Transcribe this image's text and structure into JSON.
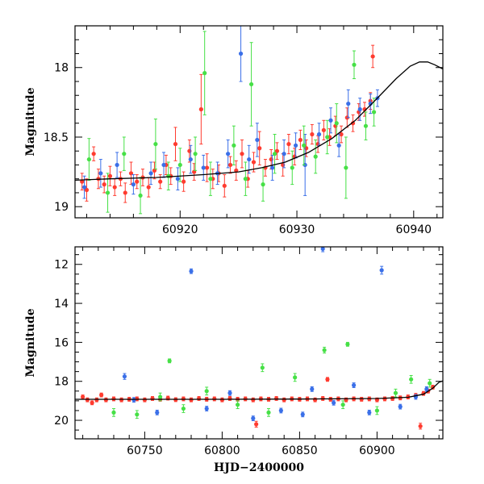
{
  "chart_data": [
    {
      "type": "scatter",
      "title": "",
      "xlabel": "",
      "ylabel": "Magnitude",
      "xlim": [
        60911,
        60942.5
      ],
      "ylim": [
        19.08,
        17.7
      ],
      "y_inverted": true,
      "grid": false,
      "xticks": [
        60920,
        60930,
        60940
      ],
      "yticks": [
        18,
        18.5,
        19
      ],
      "series": [
        {
          "color": "#ff3b2f",
          "points": [
            [
              60911.6,
              18.82,
              0.06
            ],
            [
              60912.0,
              18.88,
              0.08
            ],
            [
              60912.6,
              18.62,
              0.05
            ],
            [
              60913.0,
              18.8,
              0.07
            ],
            [
              60913.5,
              18.84,
              0.06
            ],
            [
              60914.0,
              18.78,
              0.07
            ],
            [
              60914.4,
              18.86,
              0.06
            ],
            [
              60914.9,
              18.8,
              0.05
            ],
            [
              60915.3,
              18.9,
              0.07
            ],
            [
              60915.8,
              18.76,
              0.08
            ],
            [
              60916.3,
              18.82,
              0.05
            ],
            [
              60916.8,
              18.79,
              0.06
            ],
            [
              60917.3,
              18.86,
              0.07
            ],
            [
              60917.8,
              18.74,
              0.06
            ],
            [
              60918.3,
              18.82,
              0.05
            ],
            [
              60918.8,
              18.7,
              0.07
            ],
            [
              60919.2,
              18.78,
              0.06
            ],
            [
              60919.6,
              18.55,
              0.12
            ],
            [
              60920.3,
              18.82,
              0.07
            ],
            [
              60920.8,
              18.6,
              0.08
            ],
            [
              60921.2,
              18.75,
              0.06
            ],
            [
              60921.8,
              18.3,
              0.25
            ],
            [
              60922.3,
              18.72,
              0.1
            ],
            [
              60922.8,
              18.8,
              0.07
            ],
            [
              60923.3,
              18.76,
              0.06
            ],
            [
              60923.8,
              18.85,
              0.08
            ],
            [
              60924.3,
              18.7,
              0.06
            ],
            [
              60924.8,
              18.74,
              0.07
            ],
            [
              60925.3,
              18.62,
              0.1
            ],
            [
              60925.8,
              18.8,
              0.06
            ],
            [
              60926.3,
              18.68,
              0.07
            ],
            [
              60926.8,
              18.58,
              0.12
            ],
            [
              60927.3,
              18.72,
              0.06
            ],
            [
              60927.8,
              18.66,
              0.07
            ],
            [
              60928.3,
              18.6,
              0.06
            ],
            [
              60928.8,
              18.7,
              0.08
            ],
            [
              60929.3,
              18.55,
              0.07
            ],
            [
              60929.8,
              18.64,
              0.06
            ],
            [
              60930.3,
              18.52,
              0.07
            ],
            [
              60930.8,
              18.58,
              0.06
            ],
            [
              60931.3,
              18.48,
              0.07
            ],
            [
              60931.8,
              18.55,
              0.06
            ],
            [
              60932.3,
              18.45,
              0.07
            ],
            [
              60932.8,
              18.5,
              0.06
            ],
            [
              60933.3,
              18.42,
              0.07
            ],
            [
              60933.8,
              18.48,
              0.06
            ],
            [
              60934.3,
              18.36,
              0.07
            ],
            [
              60934.8,
              18.4,
              0.06
            ],
            [
              60935.3,
              18.32,
              0.06
            ],
            [
              60935.8,
              18.3,
              0.05
            ],
            [
              60936.3,
              18.24,
              0.06
            ],
            [
              60936.5,
              17.92,
              0.08
            ]
          ]
        },
        {
          "color": "#3a6fe8",
          "points": [
            [
              60911.8,
              18.86,
              0.08
            ],
            [
              60913.2,
              18.76,
              0.1
            ],
            [
              60914.6,
              18.7,
              0.09
            ],
            [
              60916.0,
              18.84,
              0.07
            ],
            [
              60917.5,
              18.76,
              0.08
            ],
            [
              60918.6,
              18.7,
              0.09
            ],
            [
              60919.8,
              18.8,
              0.08
            ],
            [
              60920.9,
              18.66,
              0.1
            ],
            [
              60922.0,
              18.72,
              0.09
            ],
            [
              60923.2,
              18.76,
              0.08
            ],
            [
              60924.1,
              18.62,
              0.1
            ],
            [
              60925.2,
              17.9,
              0.2
            ],
            [
              60925.9,
              18.66,
              0.1
            ],
            [
              60926.6,
              18.52,
              0.12
            ],
            [
              60927.9,
              18.72,
              0.09
            ],
            [
              60928.9,
              18.62,
              0.1
            ],
            [
              60929.9,
              18.56,
              0.09
            ],
            [
              60930.7,
              18.7,
              0.22
            ],
            [
              60931.9,
              18.48,
              0.08
            ],
            [
              60932.9,
              18.38,
              0.09
            ],
            [
              60933.6,
              18.56,
              0.08
            ],
            [
              60934.4,
              18.26,
              0.1
            ],
            [
              60935.4,
              18.3,
              0.08
            ],
            [
              60936.3,
              18.26,
              0.07
            ],
            [
              60936.9,
              18.22,
              0.06
            ]
          ]
        },
        {
          "color": "#46e046",
          "points": [
            [
              60912.2,
              18.66,
              0.15
            ],
            [
              60913.8,
              18.9,
              0.14
            ],
            [
              60915.2,
              18.62,
              0.12
            ],
            [
              60916.6,
              18.92,
              0.13
            ],
            [
              60917.9,
              18.55,
              0.18
            ],
            [
              60919.0,
              18.78,
              0.1
            ],
            [
              60920.0,
              18.7,
              0.12
            ],
            [
              60921.3,
              18.62,
              0.12
            ],
            [
              60922.1,
              18.04,
              0.3
            ],
            [
              60922.6,
              18.8,
              0.12
            ],
            [
              60924.6,
              18.56,
              0.14
            ],
            [
              60925.6,
              18.8,
              0.12
            ],
            [
              60926.1,
              18.12,
              0.3
            ],
            [
              60927.1,
              18.84,
              0.12
            ],
            [
              60928.1,
              18.62,
              0.14
            ],
            [
              60929.6,
              18.72,
              0.12
            ],
            [
              60930.6,
              18.56,
              0.14
            ],
            [
              60931.6,
              18.64,
              0.12
            ],
            [
              60932.6,
              18.5,
              0.12
            ],
            [
              60933.4,
              18.4,
              0.14
            ],
            [
              60934.2,
              18.72,
              0.22
            ],
            [
              60934.9,
              17.98,
              0.1
            ],
            [
              60935.9,
              18.42,
              0.1
            ],
            [
              60936.6,
              18.32,
              0.1
            ]
          ]
        }
      ],
      "model_curve": [
        [
          60911,
          18.81
        ],
        [
          60914,
          18.8
        ],
        [
          60918,
          18.79
        ],
        [
          60922,
          18.77
        ],
        [
          60925,
          18.75
        ],
        [
          60927,
          18.72
        ],
        [
          60929,
          18.68
        ],
        [
          60931,
          18.61
        ],
        [
          60933,
          18.51
        ],
        [
          60935,
          18.38
        ],
        [
          60937,
          18.21
        ],
        [
          60938.5,
          18.08
        ],
        [
          60939.7,
          17.99
        ],
        [
          60940.5,
          17.96
        ],
        [
          60941.2,
          17.96
        ],
        [
          60941.8,
          17.98
        ],
        [
          60942.5,
          18.01
        ]
      ]
    },
    {
      "type": "scatter",
      "title": "",
      "xlabel": "HJD−2400000",
      "ylabel": "Magnitude",
      "xlim": [
        60705,
        60942.5
      ],
      "ylim": [
        20.95,
        11.1
      ],
      "y_inverted": true,
      "grid": false,
      "xticks": [
        60750,
        60800,
        60850,
        60900
      ],
      "yticks": [
        12,
        14,
        16,
        18,
        20
      ],
      "series": [
        {
          "color": "#ff3b2f",
          "points": [
            [
              60710,
              18.8,
              0.1
            ],
            [
              60713,
              18.95,
              0.1
            ],
            [
              60716,
              19.1,
              0.1
            ],
            [
              60719,
              18.95,
              0.1
            ],
            [
              60722,
              18.7,
              0.1
            ],
            [
              60725,
              18.95,
              0.1
            ],
            [
              60730,
              18.9,
              0.1
            ],
            [
              60735,
              18.95,
              0.1
            ],
            [
              60740,
              18.92,
              0.1
            ],
            [
              60745,
              18.9,
              0.1
            ],
            [
              60750,
              18.95,
              0.1
            ],
            [
              60755,
              18.88,
              0.1
            ],
            [
              60760,
              18.92,
              0.1
            ],
            [
              60765,
              18.86,
              0.1
            ],
            [
              60770,
              18.94,
              0.1
            ],
            [
              60775,
              18.9,
              0.1
            ],
            [
              60780,
              18.95,
              0.1
            ],
            [
              60785,
              18.88,
              0.1
            ],
            [
              60790,
              18.92,
              0.1
            ],
            [
              60795,
              18.9,
              0.1
            ],
            [
              60800,
              18.95,
              0.1
            ],
            [
              60805,
              18.88,
              0.1
            ],
            [
              60810,
              18.92,
              0.1
            ],
            [
              60815,
              18.9,
              0.1
            ],
            [
              60820,
              18.95,
              0.1
            ],
            [
              60822,
              20.2,
              0.15
            ],
            [
              60825,
              18.9,
              0.1
            ],
            [
              60830,
              18.92,
              0.1
            ],
            [
              60835,
              18.88,
              0.1
            ],
            [
              60840,
              18.95,
              0.1
            ],
            [
              60845,
              18.9,
              0.1
            ],
            [
              60850,
              18.92,
              0.1
            ],
            [
              60855,
              18.9,
              0.1
            ],
            [
              60860,
              18.95,
              0.1
            ],
            [
              60865,
              18.88,
              0.1
            ],
            [
              60868,
              17.9,
              0.1
            ],
            [
              60870,
              18.92,
              0.1
            ],
            [
              60875,
              18.9,
              0.1
            ],
            [
              60880,
              18.95,
              0.1
            ],
            [
              60885,
              18.9,
              0.1
            ],
            [
              60890,
              18.92,
              0.1
            ],
            [
              60895,
              18.9,
              0.1
            ],
            [
              60900,
              18.95,
              0.1
            ],
            [
              60905,
              18.9,
              0.1
            ],
            [
              60910,
              18.88,
              0.1
            ],
            [
              60915,
              18.85,
              0.1
            ],
            [
              60920,
              18.8,
              0.1
            ],
            [
              60925,
              18.72,
              0.1
            ],
            [
              60928,
              20.3,
              0.15
            ],
            [
              60930,
              18.62,
              0.1
            ],
            [
              60933,
              18.5,
              0.1
            ],
            [
              60936,
              18.3,
              0.1
            ]
          ]
        },
        {
          "color": "#3a6fe8",
          "points": [
            [
              60737,
              17.75,
              0.15
            ],
            [
              60743,
              18.95,
              0.12
            ],
            [
              60758,
              19.6,
              0.12
            ],
            [
              60780,
              12.35,
              0.12
            ],
            [
              60790,
              19.4,
              0.12
            ],
            [
              60805,
              18.6,
              0.12
            ],
            [
              60820,
              19.9,
              0.12
            ],
            [
              60838,
              19.5,
              0.12
            ],
            [
              60852,
              19.7,
              0.12
            ],
            [
              60858,
              18.4,
              0.12
            ],
            [
              60865,
              11.2,
              0.15
            ],
            [
              60872,
              19.1,
              0.12
            ],
            [
              60885,
              18.2,
              0.12
            ],
            [
              60895,
              19.6,
              0.12
            ],
            [
              60903,
              12.3,
              0.2
            ],
            [
              60915,
              19.3,
              0.12
            ],
            [
              60925,
              18.8,
              0.12
            ],
            [
              60932,
              18.4,
              0.12
            ]
          ]
        },
        {
          "color": "#46e046",
          "points": [
            [
              60730,
              19.6,
              0.2
            ],
            [
              60745,
              19.7,
              0.2
            ],
            [
              60760,
              18.8,
              0.2
            ],
            [
              60766,
              16.95,
              0.1
            ],
            [
              60775,
              19.4,
              0.2
            ],
            [
              60790,
              18.5,
              0.2
            ],
            [
              60810,
              19.2,
              0.2
            ],
            [
              60826,
              17.3,
              0.2
            ],
            [
              60830,
              19.6,
              0.2
            ],
            [
              60847,
              17.8,
              0.2
            ],
            [
              60866,
              16.4,
              0.15
            ],
            [
              60878,
              19.2,
              0.2
            ],
            [
              60881,
              16.1,
              0.1
            ],
            [
              60900,
              19.5,
              0.2
            ],
            [
              60912,
              18.6,
              0.2
            ],
            [
              60922,
              17.9,
              0.2
            ],
            [
              60934,
              18.1,
              0.2
            ]
          ]
        }
      ],
      "model_curve": [
        [
          60705,
          18.92
        ],
        [
          60750,
          18.92
        ],
        [
          60800,
          18.92
        ],
        [
          60850,
          18.91
        ],
        [
          60900,
          18.88
        ],
        [
          60920,
          18.82
        ],
        [
          60930,
          18.66
        ],
        [
          60936,
          18.35
        ],
        [
          60940,
          18.05
        ],
        [
          60942.5,
          17.98
        ]
      ]
    }
  ]
}
